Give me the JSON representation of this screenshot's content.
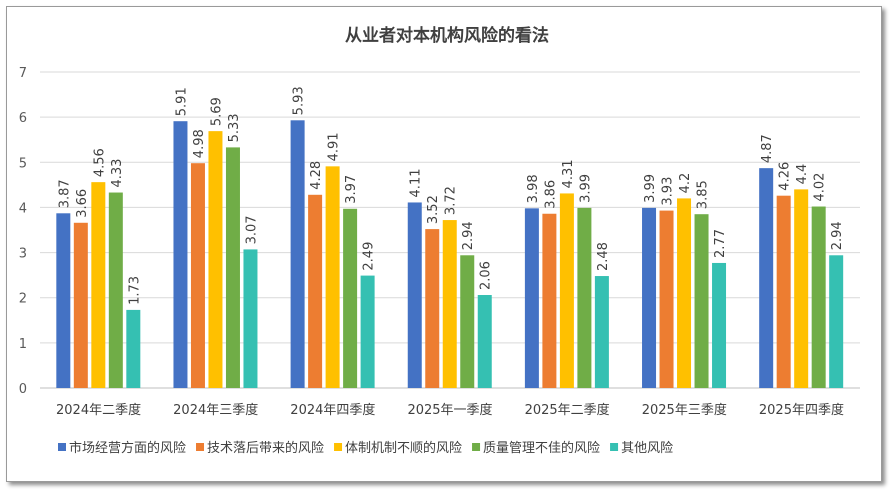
{
  "chart_data": {
    "type": "bar",
    "title": "从业者对本机构风险的看法",
    "categories": [
      "2024年二季度",
      "2024年三季度",
      "2024年四季度",
      "2025年一季度",
      "2025年二季度",
      "2025年三季度",
      "2025年四季度"
    ],
    "series": [
      {
        "name": "市场经营方面的风险",
        "color": "#4472C4",
        "values": [
          3.87,
          5.91,
          5.93,
          4.11,
          3.98,
          3.99,
          4.87
        ]
      },
      {
        "name": "技术落后带来的风险",
        "color": "#ED7D31",
        "values": [
          3.66,
          4.98,
          4.28,
          3.52,
          3.86,
          3.93,
          4.26
        ]
      },
      {
        "name": "体制机制不顺的风险",
        "color": "#FFC000",
        "values": [
          4.56,
          5.69,
          4.91,
          3.72,
          4.31,
          4.2,
          4.4
        ]
      },
      {
        "name": "质量管理不佳的风险",
        "color": "#70AD47",
        "values": [
          4.33,
          5.33,
          3.97,
          2.94,
          3.99,
          3.85,
          4.02
        ]
      },
      {
        "name": "其他风险",
        "color": "#35C0B2",
        "values": [
          1.73,
          3.07,
          2.49,
          2.06,
          2.48,
          2.77,
          2.94
        ]
      }
    ],
    "ylim": [
      0,
      7
    ],
    "yticks": [
      0,
      1,
      2,
      3,
      4,
      5,
      6,
      7
    ],
    "grid": true,
    "legend": "bottom"
  }
}
